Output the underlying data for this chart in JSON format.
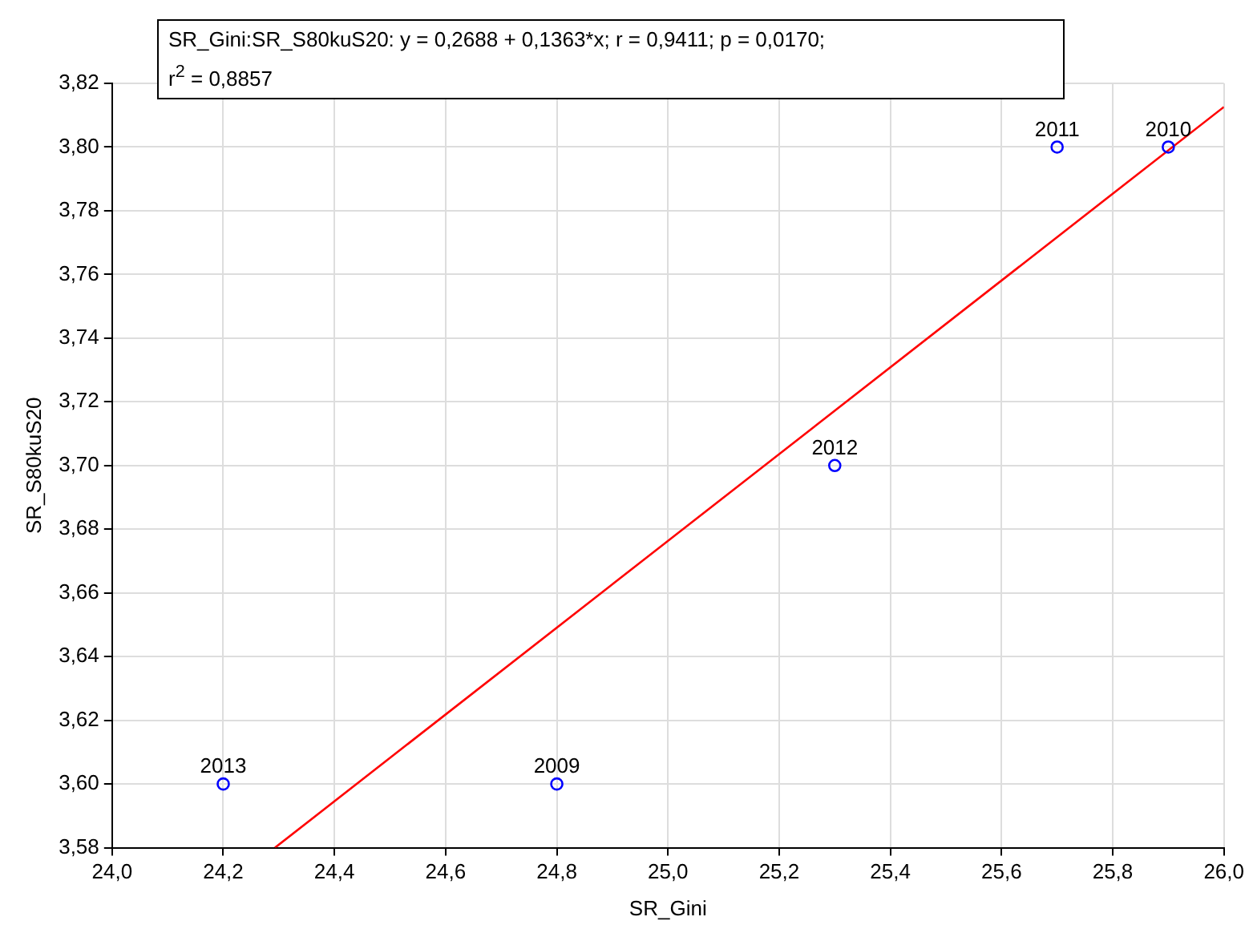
{
  "chart_data": {
    "type": "scatter",
    "xlabel": "SR_Gini",
    "ylabel": "SR_S80kuS20",
    "annotations": [
      "SR_Gini:SR_S80kuS20:   y = 0,2688 + 0,1363*x;  r = 0,9411; p = 0,0170;",
      "r$^{2}$ = 0,8857",
      {
        "text": "2013",
        "x": 24.2,
        "y": 3.6
      },
      {
        "text": "2009",
        "x": 24.8,
        "y": 3.6
      },
      {
        "text": "2012",
        "x": 25.3,
        "y": 3.7
      },
      {
        "text": "2011",
        "x": 25.7,
        "y": 3.8
      },
      {
        "text": "2010",
        "x": 25.9,
        "y": 3.8
      }
    ],
    "series": [
      {
        "type": "scatter",
        "color": "#0000ff",
        "x": [
          24.2,
          24.8,
          25.3,
          25.7,
          25.9
        ],
        "values": [
          3.6,
          3.6,
          3.7,
          3.8,
          3.8
        ],
        "marker": "circle"
      },
      {
        "type": "line",
        "color": "#ff0000",
        "x": [
          24.293,
          26.0
        ],
        "values": [
          3.58,
          3.8126
        ],
        "marker": "none"
      }
    ],
    "xlim": [
      24.0,
      26.0
    ],
    "xticks": [
      {
        "value": 24.0,
        "label": "24,0"
      },
      {
        "value": 24.2,
        "label": "24,2"
      },
      {
        "value": 24.4,
        "label": "24,4"
      },
      {
        "value": 24.6,
        "label": "24,6"
      },
      {
        "value": 24.8,
        "label": "24,8"
      },
      {
        "value": 25.0,
        "label": "25,0"
      },
      {
        "value": 25.2,
        "label": "25,2"
      },
      {
        "value": 25.4,
        "label": "25,4"
      },
      {
        "value": 25.6,
        "label": "25,6"
      },
      {
        "value": 25.8,
        "label": "25,8"
      },
      {
        "value": 26.0,
        "label": "26,0"
      }
    ],
    "ylim": [
      3.58,
      3.82
    ],
    "yticks": [
      {
        "value": 3.58,
        "label": "3,58"
      },
      {
        "value": 3.6,
        "label": "3,60"
      },
      {
        "value": 3.62,
        "label": "3,62"
      },
      {
        "value": 3.64,
        "label": "3,64"
      },
      {
        "value": 3.66,
        "label": "3,66"
      },
      {
        "value": 3.68,
        "label": "3,68"
      },
      {
        "value": 3.7,
        "label": "3,70"
      },
      {
        "value": 3.72,
        "label": "3,72"
      },
      {
        "value": 3.74,
        "label": "3,74"
      },
      {
        "value": 3.76,
        "label": "3,76"
      },
      {
        "value": 3.78,
        "label": "3,78"
      },
      {
        "value": 3.8,
        "label": "3,80"
      },
      {
        "value": 3.82,
        "label": "3,82"
      }
    ],
    "grid": true,
    "legend": false
  }
}
